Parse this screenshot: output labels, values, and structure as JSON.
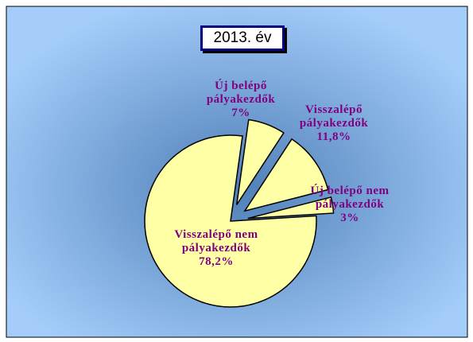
{
  "chart_data": {
    "type": "pie",
    "title": "2013. év",
    "categories": [
      "Új belépő pályakezdők",
      "Visszalépő pályakezdők",
      "Új belépő nem pályakezdők",
      "Visszalépő nem pályakezdők"
    ],
    "values": [
      7,
      11.8,
      3,
      78.2
    ],
    "value_labels": [
      "7%",
      "11,8%",
      "3%",
      "78,2%"
    ],
    "color": "#ffffa6"
  }
}
